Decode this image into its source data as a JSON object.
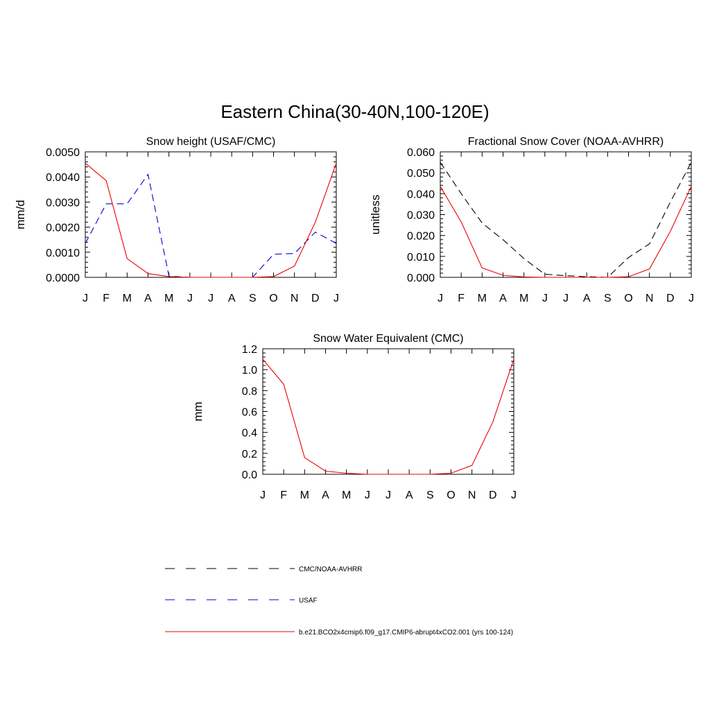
{
  "figure": {
    "title": "Eastern China(30-40N,100-120E)"
  },
  "chart_data": [
    {
      "type": "line",
      "title": "Snow height (USAF/CMC)",
      "xlabel": "",
      "ylabel": "mm/d",
      "x": [
        "J",
        "F",
        "M",
        "A",
        "M",
        "J",
        "J",
        "A",
        "S",
        "O",
        "N",
        "D",
        "J"
      ],
      "ylim": [
        0,
        0.005
      ],
      "yticks": [
        "0.0000",
        "0.0010",
        "0.0020",
        "0.0030",
        "0.0040",
        "0.0050"
      ],
      "series": [
        {
          "name": "CMC/NOAA-AVHRR",
          "style": "dashed",
          "color": "#000000",
          "values": [
            0,
            0,
            0,
            0,
            0,
            0,
            0,
            0,
            0,
            0,
            0,
            0,
            0
          ]
        },
        {
          "name": "USAF",
          "style": "dashed",
          "color": "#0000cc",
          "values": [
            0.00135,
            0.00293,
            0.00293,
            0.0041,
            5e-05,
            0,
            0,
            0,
            0,
            0.00092,
            0.00095,
            0.0018,
            0.00135
          ]
        },
        {
          "name": "b.e21.BCO2x4cmip6.f09_g17.CMIP6-abrupt4xCO2.001 (yrs 100-124)",
          "style": "solid",
          "color": "#ee0000",
          "values": [
            0.00455,
            0.00385,
            0.00075,
            0.00015,
            3e-05,
            0,
            0,
            0,
            0,
            3e-05,
            0.00045,
            0.0022,
            0.00455
          ]
        }
      ]
    },
    {
      "type": "line",
      "title": "Fractional Snow Cover (NOAA-AVHRR)",
      "xlabel": "",
      "ylabel": "unitless",
      "x": [
        "J",
        "F",
        "M",
        "A",
        "M",
        "J",
        "J",
        "A",
        "S",
        "O",
        "N",
        "D",
        "J"
      ],
      "ylim": [
        0,
        0.06
      ],
      "yticks": [
        "0.000",
        "0.010",
        "0.020",
        "0.030",
        "0.040",
        "0.050",
        "0.060"
      ],
      "series": [
        {
          "name": "CMC/NOAA-AVHRR",
          "style": "dashed",
          "color": "#000000",
          "values": [
            0.055,
            0.04,
            0.026,
            0.018,
            0.009,
            0.0015,
            0.0008,
            0.0003,
            0,
            0.0095,
            0.016,
            0.036,
            0.055
          ]
        },
        {
          "name": "b.e21.BCO2x4cmip6.f09_g17.CMIP6-abrupt4xCO2.001 (yrs 100-124)",
          "style": "solid",
          "color": "#ee0000",
          "values": [
            0.0435,
            0.0265,
            0.0045,
            0.001,
            0.0002,
            0,
            0,
            0,
            0,
            0.0003,
            0.004,
            0.022,
            0.0435
          ]
        }
      ]
    },
    {
      "type": "line",
      "title": "Snow Water Equivalent (CMC)",
      "xlabel": "",
      "ylabel": "mm",
      "x": [
        "J",
        "F",
        "M",
        "A",
        "M",
        "J",
        "J",
        "A",
        "S",
        "O",
        "N",
        "D",
        "J"
      ],
      "ylim": [
        0,
        1.2
      ],
      "yticks": [
        "0.0",
        "0.2",
        "0.4",
        "0.6",
        "0.8",
        "1.0",
        "1.2"
      ],
      "series": [
        {
          "name": "CMC/NOAA-AVHRR",
          "style": "dashed",
          "color": "#000000",
          "values": [
            0,
            0,
            0,
            0,
            0,
            0,
            0,
            0,
            0,
            0,
            0,
            0,
            0
          ]
        },
        {
          "name": "b.e21.BCO2x4cmip6.f09_g17.CMIP6-abrupt4xCO2.001 (yrs 100-124)",
          "style": "solid",
          "color": "#ee0000",
          "values": [
            1.1,
            0.86,
            0.16,
            0.03,
            0.01,
            0,
            0,
            0,
            0,
            0.01,
            0.085,
            0.5,
            1.1
          ]
        }
      ]
    }
  ],
  "legend": [
    {
      "label": "CMC/NOAA-AVHRR",
      "style": "dashed",
      "color": "#000000"
    },
    {
      "label": "USAF",
      "style": "dashed",
      "color": "#0000cc"
    },
    {
      "label": "b.e21.BCO2x4cmip6.f09_g17.CMIP6-abrupt4xCO2.001 (yrs 100-124)",
      "style": "solid",
      "color": "#ee0000"
    }
  ]
}
